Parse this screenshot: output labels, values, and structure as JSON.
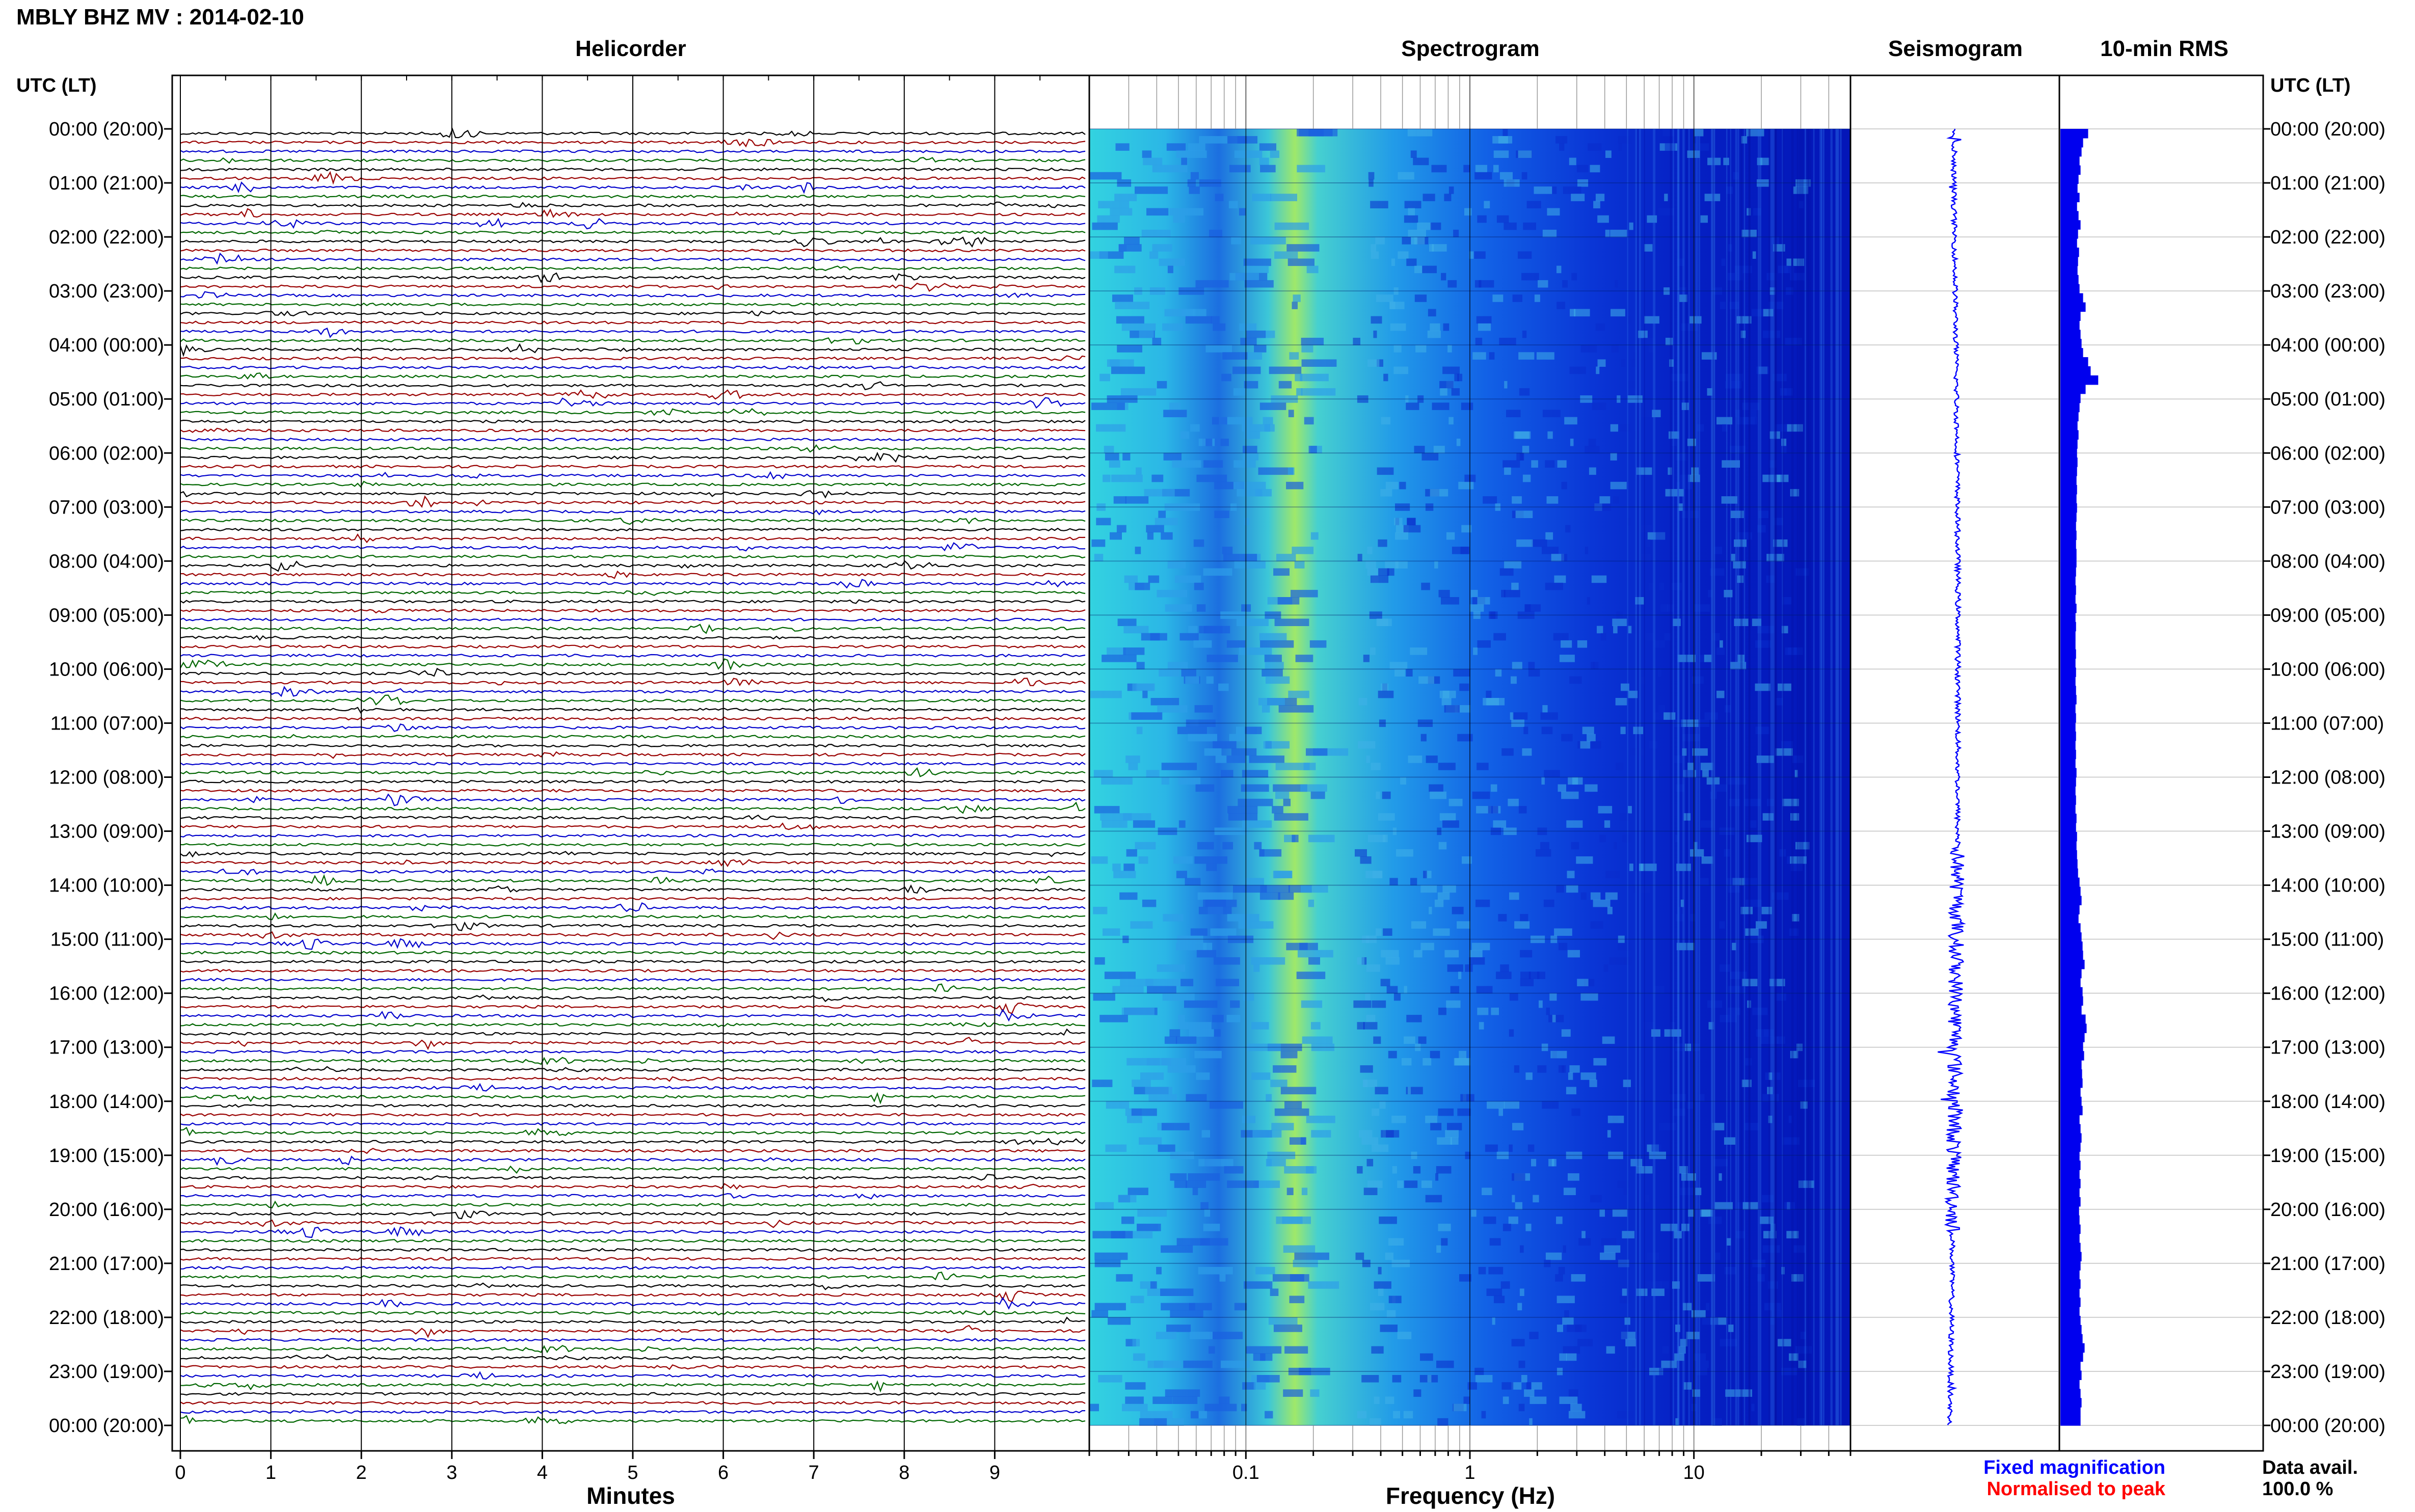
{
  "header": {
    "title": "MBLY BHZ MV : 2014-02-10",
    "utc_left": "UTC (LT)",
    "utc_right": "UTC (LT)"
  },
  "panels": {
    "helicorder": "Helicorder",
    "spectrogram": "Spectrogram",
    "seismogram": "Seismogram",
    "rms": "10-min RMS"
  },
  "axes": {
    "minutes_label": "Minutes",
    "frequency_label": "Frequency (Hz)"
  },
  "legend": {
    "fixed": "Fixed magnification",
    "normalised": "Normalised to peak",
    "fixed_color": "#0000ff",
    "normalised_color": "#ff0000",
    "data_avail_label": "Data avail.",
    "data_avail_value": "100.0 %"
  },
  "chart_data": {
    "type": "heatmap",
    "hour_labels": [
      "00:00 (20:00)",
      "01:00 (21:00)",
      "02:00 (22:00)",
      "03:00 (23:00)",
      "04:00 (00:00)",
      "05:00 (01:00)",
      "06:00 (02:00)",
      "07:00 (03:00)",
      "08:00 (04:00)",
      "09:00 (05:00)",
      "10:00 (06:00)",
      "11:00 (07:00)",
      "12:00 (08:00)",
      "13:00 (09:00)",
      "14:00 (10:00)",
      "15:00 (11:00)",
      "16:00 (12:00)",
      "17:00 (13:00)",
      "18:00 (14:00)",
      "19:00 (15:00)",
      "20:00 (16:00)",
      "21:00 (17:00)",
      "22:00 (18:00)",
      "23:00 (19:00)",
      "00:00 (20:00)"
    ],
    "minute_ticks": [
      "0",
      "1",
      "2",
      "3",
      "4",
      "5",
      "6",
      "7",
      "8",
      "9"
    ],
    "minute_range": [
      0,
      10
    ],
    "freq_ticks": [
      {
        "value": 0.1,
        "label": "0.1"
      },
      {
        "value": 1,
        "label": "1"
      },
      {
        "value": 10,
        "label": "10"
      }
    ],
    "freq_range": [
      0.02,
      50
    ],
    "freq_scale": "log",
    "helicorder_colors": [
      "#000000",
      "#990000",
      "#0000cc",
      "#006600"
    ],
    "lines_per_hour": 6,
    "rms_series": [
      0.55,
      0.45,
      0.42,
      0.38,
      0.4,
      0.36,
      0.34,
      0.38,
      0.33,
      0.36,
      0.4,
      0.35,
      0.33,
      0.37,
      0.35,
      0.34,
      0.36,
      0.38,
      0.45,
      0.5,
      0.4,
      0.38,
      0.4,
      0.42,
      0.45,
      0.55,
      0.6,
      0.75,
      0.5,
      0.4,
      0.38,
      0.36,
      0.34,
      0.36,
      0.34,
      0.33,
      0.34,
      0.33,
      0.32,
      0.33,
      0.32,
      0.33,
      0.32,
      0.31,
      0.32,
      0.31,
      0.32,
      0.32,
      0.31,
      0.3,
      0.31,
      0.3,
      0.32,
      0.3,
      0.31,
      0.3,
      0.3,
      0.31,
      0.3,
      0.31,
      0.3,
      0.31,
      0.32,
      0.3,
      0.31,
      0.3,
      0.31,
      0.3,
      0.31,
      0.3,
      0.32,
      0.31,
      0.3,
      0.31,
      0.3,
      0.32,
      0.31,
      0.33,
      0.32,
      0.33,
      0.34,
      0.35,
      0.38,
      0.4,
      0.42,
      0.38,
      0.36,
      0.4,
      0.42,
      0.44,
      0.45,
      0.48,
      0.42,
      0.4,
      0.44,
      0.45,
      0.42,
      0.5,
      0.52,
      0.48,
      0.45,
      0.47,
      0.42,
      0.43,
      0.44,
      0.4,
      0.42,
      0.44,
      0.38,
      0.4,
      0.42,
      0.4,
      0.38,
      0.4,
      0.38,
      0.4,
      0.38,
      0.4,
      0.37,
      0.38,
      0.4,
      0.38,
      0.4,
      0.42,
      0.4,
      0.38,
      0.4,
      0.38,
      0.4,
      0.38,
      0.4,
      0.42,
      0.44,
      0.48,
      0.45,
      0.4,
      0.42,
      0.38,
      0.4,
      0.42,
      0.4,
      0.4
    ]
  }
}
